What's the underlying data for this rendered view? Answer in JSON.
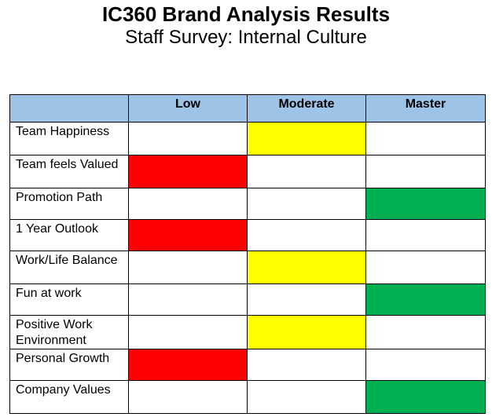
{
  "title": "IC360 Brand Analysis Results",
  "subtitle": "Staff Survey: Internal Culture",
  "colors": {
    "header_fill": "#9dc3e6",
    "Low": "#ff0000",
    "Moderate": "#ffff00",
    "Master": "#00b050"
  },
  "table": {
    "columns": [
      "",
      "Low",
      "Moderate",
      "Master"
    ],
    "rows": [
      {
        "label": "Team Happiness",
        "rating": "Moderate"
      },
      {
        "label": "Team feels Valued",
        "rating": "Low"
      },
      {
        "label": "Promotion Path",
        "rating": "Master"
      },
      {
        "label": "1 Year Outlook",
        "rating": "Low"
      },
      {
        "label": "Work/Life Balance",
        "rating": "Moderate"
      },
      {
        "label": "Fun at work",
        "rating": "Master"
      },
      {
        "label": "Positive Work Environment",
        "rating": "Moderate"
      },
      {
        "label": "Personal Growth",
        "rating": "Low"
      },
      {
        "label": "Company Values",
        "rating": "Master"
      }
    ]
  }
}
